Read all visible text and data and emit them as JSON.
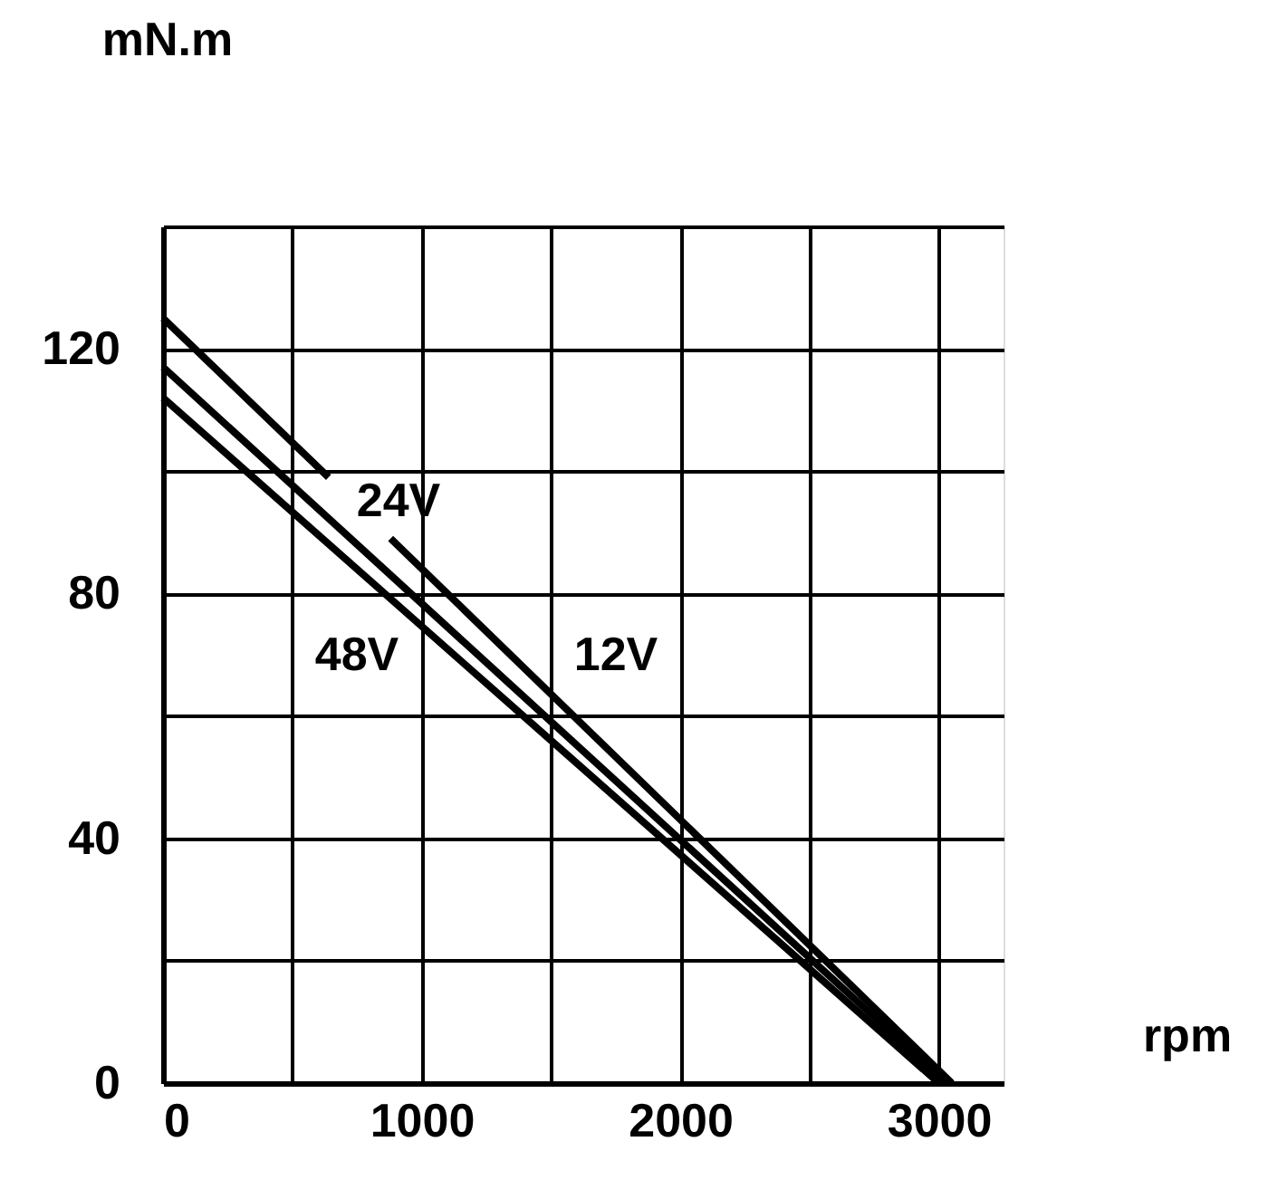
{
  "chart_data": {
    "type": "line",
    "xlabel": "rpm",
    "ylabel": "mN.m",
    "series": [
      {
        "color": "#000000",
        "x": [
          0,
          640,
          760,
          880,
          3050
        ],
        "values": [
          125,
          99,
          null,
          89,
          0
        ]
      },
      {
        "color": "#000000",
        "x": [
          0,
          3030
        ],
        "values": [
          117,
          0
        ]
      },
      {
        "color": "#000000",
        "x": [
          0,
          3000
        ],
        "values": [
          112,
          0
        ]
      }
    ],
    "annotations": [
      "24V",
      "12V",
      "48V"
    ],
    "xlim": [
      0,
      3250
    ],
    "ylim": [
      0,
      140
    ],
    "xticks": [
      0,
      {
        "value": 500,
        "label": null
      },
      1000,
      {
        "value": 1500,
        "label": null
      },
      2000,
      {
        "value": 2500,
        "label": null
      },
      3000
    ],
    "yticks": [
      0,
      {
        "value": 20,
        "label": null
      },
      40,
      {
        "value": 60,
        "label": null
      },
      80,
      {
        "value": 100,
        "label": null
      },
      120,
      {
        "value": 140,
        "label": null
      }
    ],
    "grid": true,
    "marker": "none",
    "line_style": "solid"
  }
}
